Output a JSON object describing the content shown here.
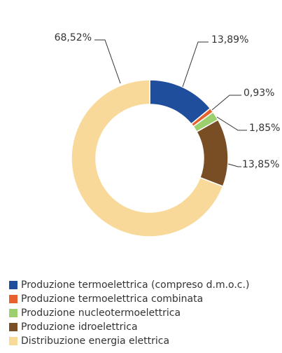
{
  "chart_data": {
    "type": "donut",
    "categories": [
      "Produzione termoelettrica (compreso d.m.o.c.)",
      "Produzione termoelettrica combinata",
      "Produzione nucleotermoelettrica",
      "Produzione idroelettrica",
      "Distribuzione energia elettrica"
    ],
    "values": [
      13.89,
      0.93,
      1.85,
      13.85,
      68.52
    ],
    "value_labels": [
      "13,89%",
      "0,93%",
      "1,85%",
      "13,85%",
      "68,52%"
    ],
    "colors": [
      "#1f4e9c",
      "#e8612c",
      "#9ccf6e",
      "#7a4e25",
      "#f9d999"
    ],
    "legend": "bottom"
  }
}
